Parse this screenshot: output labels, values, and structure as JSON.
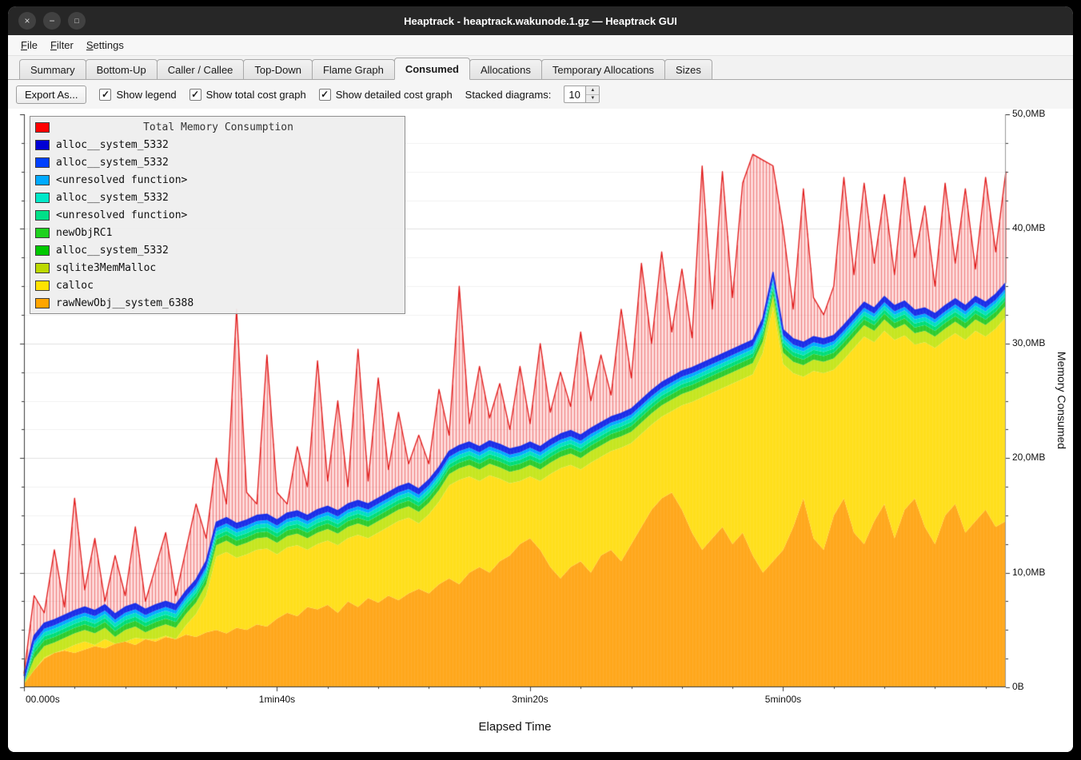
{
  "window": {
    "title": "Heaptrack - heaptrack.wakunode.1.gz — Heaptrack GUI"
  },
  "icons": {
    "close": "×",
    "minimize": "−",
    "maximize": "□",
    "check": "✓",
    "spin_up": "▲",
    "spin_down": "▼"
  },
  "menubar": {
    "items": [
      "File",
      "Filter",
      "Settings"
    ]
  },
  "tabs": {
    "active_index": 5,
    "items": [
      "Summary",
      "Bottom-Up",
      "Caller / Callee",
      "Top-Down",
      "Flame Graph",
      "Consumed",
      "Allocations",
      "Temporary Allocations",
      "Sizes"
    ]
  },
  "toolbar": {
    "export_button": "Export As...",
    "checkboxes": [
      {
        "label": "Show legend",
        "checked": true
      },
      {
        "label": "Show total cost graph",
        "checked": true
      },
      {
        "label": "Show detailed cost graph",
        "checked": true
      }
    ],
    "stacked_label": "Stacked diagrams:",
    "stacked_value": "10"
  },
  "legend": {
    "items": [
      {
        "label": "Total Memory Consumption",
        "color": "#ff0000",
        "is_title": true
      },
      {
        "label": "alloc__system_5332",
        "color": "#0000d5"
      },
      {
        "label": "alloc__system_5332",
        "color": "#0040ff"
      },
      {
        "label": "<unresolved function>",
        "color": "#00aaff"
      },
      {
        "label": "alloc__system_5332",
        "color": "#00e8c8"
      },
      {
        "label": "<unresolved function>",
        "color": "#00e088"
      },
      {
        "label": "newObjRC1",
        "color": "#1ed21e"
      },
      {
        "label": "alloc__system_5332",
        "color": "#00c800"
      },
      {
        "label": "sqlite3MemMalloc",
        "color": "#bcd900"
      },
      {
        "label": "calloc",
        "color": "#ffe200"
      },
      {
        "label": "rawNewObj__system_6388",
        "color": "#ffa500"
      }
    ]
  },
  "chart_data": {
    "type": "area",
    "title": "Total Memory Consumption",
    "xlabel": "Elapsed Time",
    "ylabel": "Memory Consumed",
    "x_tick_labels": [
      "00.000s",
      "1min40s",
      "3min20s",
      "5min00s"
    ],
    "x_tick_seconds": [
      0,
      100,
      200,
      300
    ],
    "x_minor_step_seconds": 20,
    "duration_seconds": 388,
    "y_tick_labels": [
      "0B",
      "10,0MB",
      "20,0MB",
      "30,0MB",
      "40,0MB",
      "50,0MB"
    ],
    "y_tick_values": [
      0,
      10,
      20,
      30,
      40,
      50
    ],
    "y_minor_step_mb": 2.5,
    "ylim": [
      0,
      50
    ],
    "sample_step_seconds": 4,
    "series": {
      "rawNewObj_top_mb": [
        0.3,
        1.5,
        2.5,
        3.0,
        3.2,
        3.0,
        3.3,
        3.6,
        3.4,
        3.8,
        4.0,
        3.7,
        4.2,
        4.0,
        4.4,
        4.2,
        4.6,
        4.4,
        4.8,
        5.0,
        4.7,
        5.2,
        5.0,
        5.5,
        5.3,
        6.0,
        6.5,
        6.2,
        7.0,
        6.8,
        7.2,
        6.5,
        7.5,
        7.0,
        7.8,
        7.4,
        8.0,
        7.6,
        8.2,
        8.6,
        8.2,
        9.0,
        9.5,
        9.0,
        10.0,
        10.5,
        10.0,
        11.0,
        11.5,
        12.5,
        13.0,
        12.0,
        10.5,
        9.5,
        10.5,
        11.0,
        10.0,
        11.5,
        12.0,
        11.0,
        12.5,
        14.0,
        15.5,
        16.5,
        17.0,
        15.5,
        13.5,
        12.0,
        13.0,
        14.0,
        12.5,
        13.5,
        11.5,
        10.0,
        11.0,
        12.0,
        14.0,
        16.5,
        13.0,
        12.0,
        15.0,
        16.5,
        13.5,
        12.5,
        14.5,
        16.0,
        13.0,
        15.5,
        16.5,
        14.0,
        12.5,
        15.0,
        16.0,
        13.5,
        14.5,
        15.5,
        14.0,
        14.5
      ],
      "deterministic_stack_top_mb": [
        1.0,
        4.5,
        5.6,
        5.9,
        6.3,
        6.7,
        7.0,
        6.7,
        7.2,
        6.4,
        7.0,
        7.3,
        6.8,
        7.2,
        7.5,
        7.2,
        8.4,
        9.4,
        11.0,
        14.4,
        14.8,
        14.3,
        14.6,
        15.0,
        15.1,
        14.6,
        15.2,
        15.4,
        15.0,
        15.5,
        15.8,
        15.4,
        16.0,
        16.3,
        16.0,
        16.5,
        17.0,
        17.5,
        17.8,
        17.3,
        18.1,
        19.2,
        20.6,
        21.1,
        21.4,
        21.0,
        21.5,
        21.2,
        20.8,
        21.0,
        21.4,
        21.0,
        21.6,
        22.1,
        22.4,
        22.0,
        22.6,
        23.1,
        23.6,
        23.9,
        24.3,
        25.1,
        25.9,
        26.6,
        27.1,
        27.6,
        27.9,
        28.3,
        28.7,
        29.1,
        29.5,
        29.9,
        30.3,
        32.2,
        36.2,
        31.2,
        30.4,
        30.1,
        30.6,
        30.4,
        30.7,
        31.6,
        32.6,
        33.6,
        33.1,
        34.1,
        33.3,
        33.7,
        32.9,
        33.1,
        32.6,
        33.3,
        33.9,
        33.3,
        34.1,
        33.6,
        34.3,
        35.3
      ],
      "total_consumed_mb": [
        1.2,
        8.0,
        6.5,
        12.0,
        7.0,
        16.5,
        8.5,
        13.0,
        7.5,
        11.5,
        8.0,
        14.0,
        7.5,
        10.5,
        13.5,
        8.0,
        12.0,
        16.0,
        13.0,
        20.0,
        16.0,
        33.0,
        17.0,
        16.0,
        29.0,
        17.0,
        16.0,
        21.0,
        17.5,
        28.5,
        18.0,
        25.0,
        17.5,
        29.5,
        18.0,
        27.0,
        19.0,
        24.0,
        19.5,
        22.0,
        19.5,
        26.0,
        22.0,
        35.0,
        23.0,
        28.0,
        23.5,
        26.5,
        22.5,
        28.0,
        23.0,
        30.0,
        24.0,
        27.5,
        24.5,
        31.0,
        25.0,
        29.0,
        25.5,
        33.0,
        27.0,
        37.0,
        30.0,
        38.0,
        31.0,
        36.5,
        30.5,
        45.5,
        33.0,
        45.0,
        34.0,
        44.0,
        46.5,
        46.0,
        45.5,
        40.0,
        33.0,
        43.5,
        34.0,
        32.5,
        35.0,
        44.5,
        36.0,
        44.0,
        37.0,
        43.0,
        36.0,
        44.5,
        37.5,
        42.0,
        35.0,
        44.0,
        37.0,
        43.5,
        36.5,
        44.5,
        38.0,
        45.0
      ]
    },
    "stack_colors": {
      "rawNewObj": "#ffa81c",
      "calloc": "#ffdf1c"
    },
    "thin_bands_top_down": [
      {
        "name": "alloc__system_5332",
        "color": "#1c2fe8",
        "thickness_mb": 0.5
      },
      {
        "name": "<unresolved function>",
        "color": "#00aaff",
        "thickness_mb": 0.3
      },
      {
        "name": "alloc__system_5332",
        "color": "#00e0c0",
        "thickness_mb": 0.35
      },
      {
        "name": "<unresolved function>",
        "color": "#00dd77",
        "thickness_mb": 0.35
      },
      {
        "name": "newObjRC1",
        "color": "#2ecc2e",
        "thickness_mb": 0.5
      },
      {
        "name": "sqlite3MemMalloc",
        "color": "#c6e620",
        "thickness_mb": 1.0
      }
    ],
    "total_style": {
      "fill": "rgba(244,80,80,0.22)",
      "hatch": "rgba(225,35,35,0.5)",
      "line": "#e01818"
    },
    "grid": {
      "minor": "#f1f1f1",
      "major": "#e1e1e1",
      "axis": "#3a3a3a",
      "right_axis": "#999999"
    }
  }
}
